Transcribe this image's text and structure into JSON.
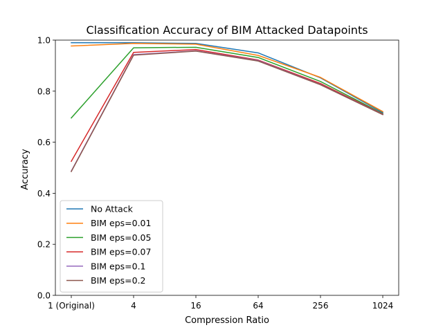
{
  "chart_data": {
    "type": "line",
    "title": "Classification Accuracy of BIM Attacked Datapoints",
    "xlabel": "Compression Ratio",
    "ylabel": "Accuracy",
    "categories": [
      "1 (Original)",
      "4",
      "16",
      "64",
      "256",
      "1024"
    ],
    "ylim": [
      0.0,
      1.0
    ],
    "yticks": [
      "0.0",
      "0.2",
      "0.4",
      "0.6",
      "0.8",
      "1.0"
    ],
    "grid": false,
    "legend_position": "lower-left",
    "series": [
      {
        "name": "No Attack",
        "color": "#1f77b4",
        "values": [
          0.99,
          0.99,
          0.987,
          0.95,
          0.852,
          0.716
        ]
      },
      {
        "name": "BIM eps=0.01",
        "color": "#ff7f0e",
        "values": [
          0.977,
          0.987,
          0.984,
          0.94,
          0.854,
          0.72
        ]
      },
      {
        "name": "BIM eps=0.05",
        "color": "#2ca02c",
        "values": [
          0.695,
          0.97,
          0.972,
          0.932,
          0.838,
          0.712
        ]
      },
      {
        "name": "BIM eps=0.07",
        "color": "#d62728",
        "values": [
          0.525,
          0.952,
          0.963,
          0.922,
          0.83,
          0.71
        ]
      },
      {
        "name": "BIM eps=0.1",
        "color": "#9467bd",
        "values": [
          0.487,
          0.943,
          0.958,
          0.92,
          0.826,
          0.709
        ]
      },
      {
        "name": "BIM eps=0.2",
        "color": "#8c564b",
        "values": [
          0.485,
          0.941,
          0.957,
          0.918,
          0.825,
          0.708
        ]
      }
    ]
  }
}
